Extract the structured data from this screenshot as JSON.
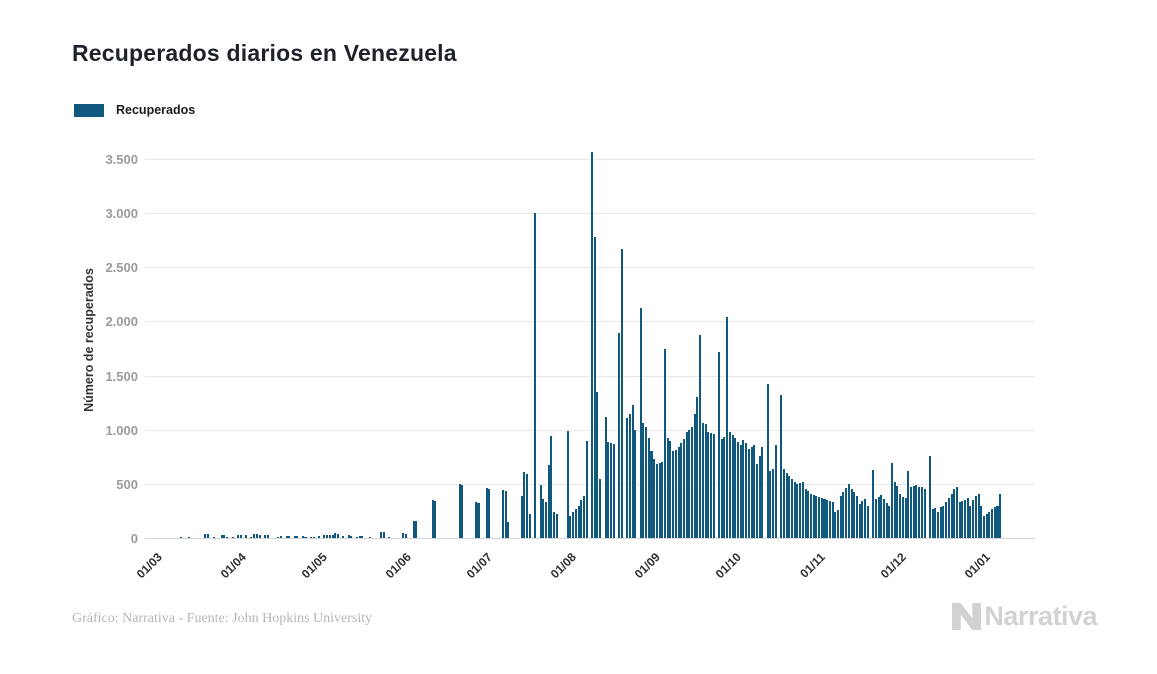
{
  "header": {
    "title": "Recuperados diarios en Venezuela"
  },
  "legend": {
    "label": "Recuperados",
    "color": "#10587E"
  },
  "chart_data": {
    "type": "bar",
    "title": "Recuperados diarios en Venezuela",
    "series_name": "Recuperados",
    "bar_color": "#10587E",
    "xlabel": "",
    "ylabel": "Número de recuperados",
    "ylim": [
      0,
      3500
    ],
    "ytick_step": 500,
    "ytick_labels": [
      "0",
      "500",
      "1.000",
      "1.500",
      "2.000",
      "2.500",
      "3.000",
      "3.500"
    ],
    "xtick_labels": [
      "01/03",
      "01/04",
      "01/05",
      "01/06",
      "01/07",
      "01/08",
      "01/09",
      "01/10",
      "01/11",
      "01/12",
      "01/01"
    ],
    "xtick_day_indices": [
      0,
      31,
      61,
      92,
      122,
      153,
      184,
      214,
      245,
      275,
      306
    ],
    "grid": "horizontal-only",
    "legend_position": "top-left",
    "values": [
      0,
      0,
      0,
      0,
      0,
      0,
      0,
      0,
      0,
      0,
      0,
      0,
      0,
      6,
      5,
      0,
      8,
      0,
      5,
      0,
      0,
      0,
      37,
      35,
      0,
      8,
      0,
      0,
      32,
      30,
      10,
      0,
      8,
      0,
      31,
      28,
      0,
      28,
      0,
      6,
      35,
      33,
      30,
      0,
      30,
      28,
      0,
      5,
      0,
      6,
      15,
      0,
      22,
      20,
      0,
      20,
      18,
      0,
      15,
      12,
      0,
      12,
      10,
      0,
      22,
      0,
      25,
      24,
      28,
      26,
      43,
      40,
      0,
      15,
      0,
      25,
      22,
      0,
      8,
      20,
      18,
      0,
      0,
      8,
      0,
      0,
      0,
      55,
      52,
      0,
      10,
      0,
      0,
      0,
      0,
      43,
      40,
      0,
      0,
      160,
      155,
      0,
      0,
      0,
      0,
      0,
      352,
      345,
      0,
      0,
      0,
      0,
      0,
      0,
      0,
      0,
      500,
      490,
      0,
      0,
      0,
      0,
      330,
      320,
      0,
      0,
      460,
      450,
      0,
      0,
      0,
      0,
      448,
      435,
      145,
      0,
      0,
      0,
      0,
      386,
      608,
      595,
      222,
      0,
      3005,
      0,
      490,
      360,
      330,
      670,
      947,
      238,
      222,
      0,
      0,
      0,
      987,
      207,
      240,
      268,
      300,
      350,
      392,
      900,
      0,
      3571,
      2784,
      1349,
      546,
      0,
      1117,
      885,
      875,
      870,
      0,
      1890,
      2667,
      0,
      1108,
      1150,
      1225,
      1000,
      0,
      2126,
      1060,
      1022,
      923,
      800,
      731,
      685,
      690,
      700,
      1750,
      920,
      900,
      808,
      810,
      840,
      880,
      917,
      978,
      1000,
      1022,
      1150,
      1302,
      1873,
      1060,
      1055,
      978,
      970,
      963,
      0,
      1719,
      917,
      930,
      2043,
      978,
      950,
      923,
      890,
      855,
      901,
      880,
      824,
      840,
      855,
      685,
      760,
      840,
      0,
      1426,
      623,
      640,
      855,
      0,
      1318,
      639,
      600,
      577,
      546,
      520,
      500,
      508,
      515,
      454,
      430,
      407,
      400,
      392,
      376,
      368,
      361,
      352,
      345,
      330,
      240,
      260,
      392,
      429,
      460,
      500,
      450,
      429,
      392,
      315,
      340,
      361,
      300,
      0,
      630,
      361,
      380,
      398,
      360,
      324,
      293,
      691,
      520,
      484,
      407,
      380,
      367,
      623,
      469,
      480,
      491,
      475,
      469,
      454,
      0,
      756,
      269,
      280,
      244,
      284,
      300,
      330,
      367,
      410,
      454,
      469,
      330,
      340,
      355,
      367,
      300,
      350,
      392,
      407,
      300,
      207,
      222,
      240,
      269,
      284,
      300,
      407
    ]
  },
  "footer": {
    "credit": "Gráfico: Narrativa - Fuente: John Hopkins University",
    "brand": "Narrativa"
  }
}
